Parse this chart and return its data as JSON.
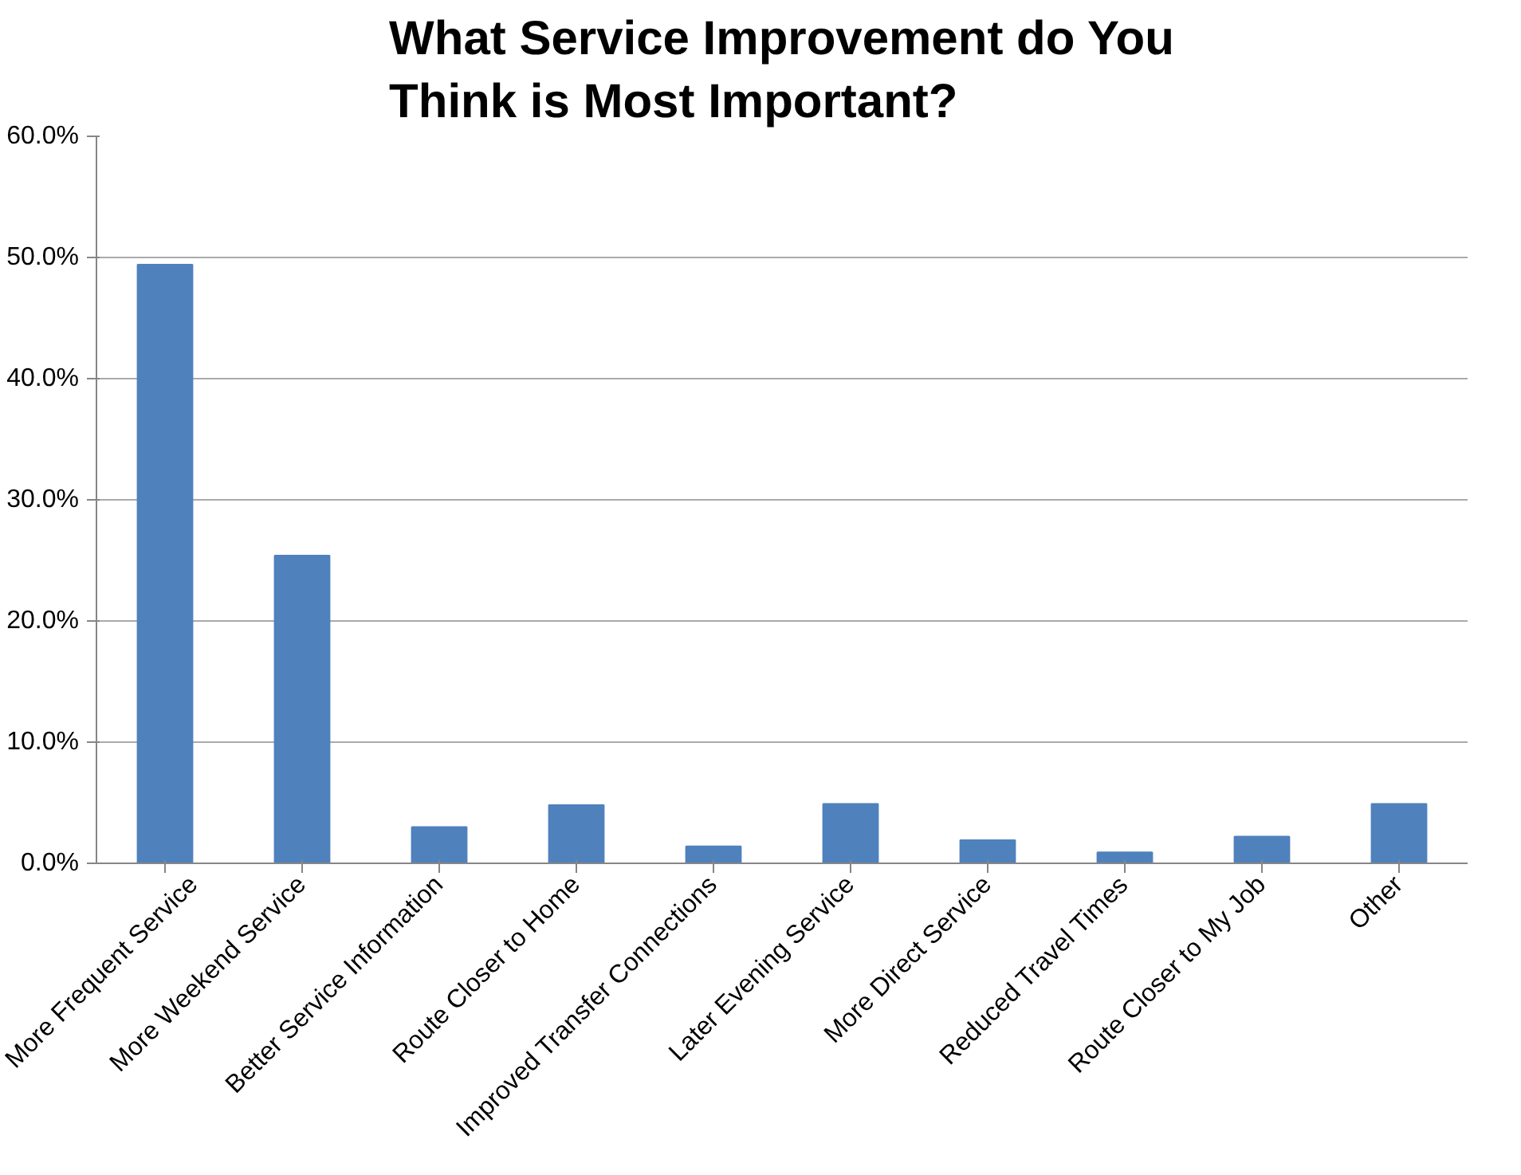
{
  "chart_data": {
    "type": "bar",
    "title": "What Service Improvement do You Think is Most Important?",
    "categories": [
      "More Frequent Service",
      "More Weekend Service",
      "Better Service Information",
      "Route Closer to Home",
      "Improved Transfer Connections",
      "Later Evening Service",
      "More Direct Service",
      "Reduced Travel Times",
      "Route Closer to My Job",
      "Other"
    ],
    "values": [
      49.4,
      25.4,
      3.0,
      4.8,
      1.4,
      4.9,
      1.9,
      0.9,
      2.2,
      4.9
    ],
    "color": "#4f81bd",
    "ylim": [
      0,
      60
    ],
    "yticks": [
      {
        "value": 0,
        "label": "0.0%"
      },
      {
        "value": 10,
        "label": "10.0%"
      },
      {
        "value": 20,
        "label": "20.0%"
      },
      {
        "value": 30,
        "label": "30.0%"
      },
      {
        "value": 40,
        "label": "40.0%"
      },
      {
        "value": 50,
        "label": "50.0%"
      },
      {
        "value": 60,
        "label": "60.0%"
      }
    ],
    "grid": "y"
  }
}
